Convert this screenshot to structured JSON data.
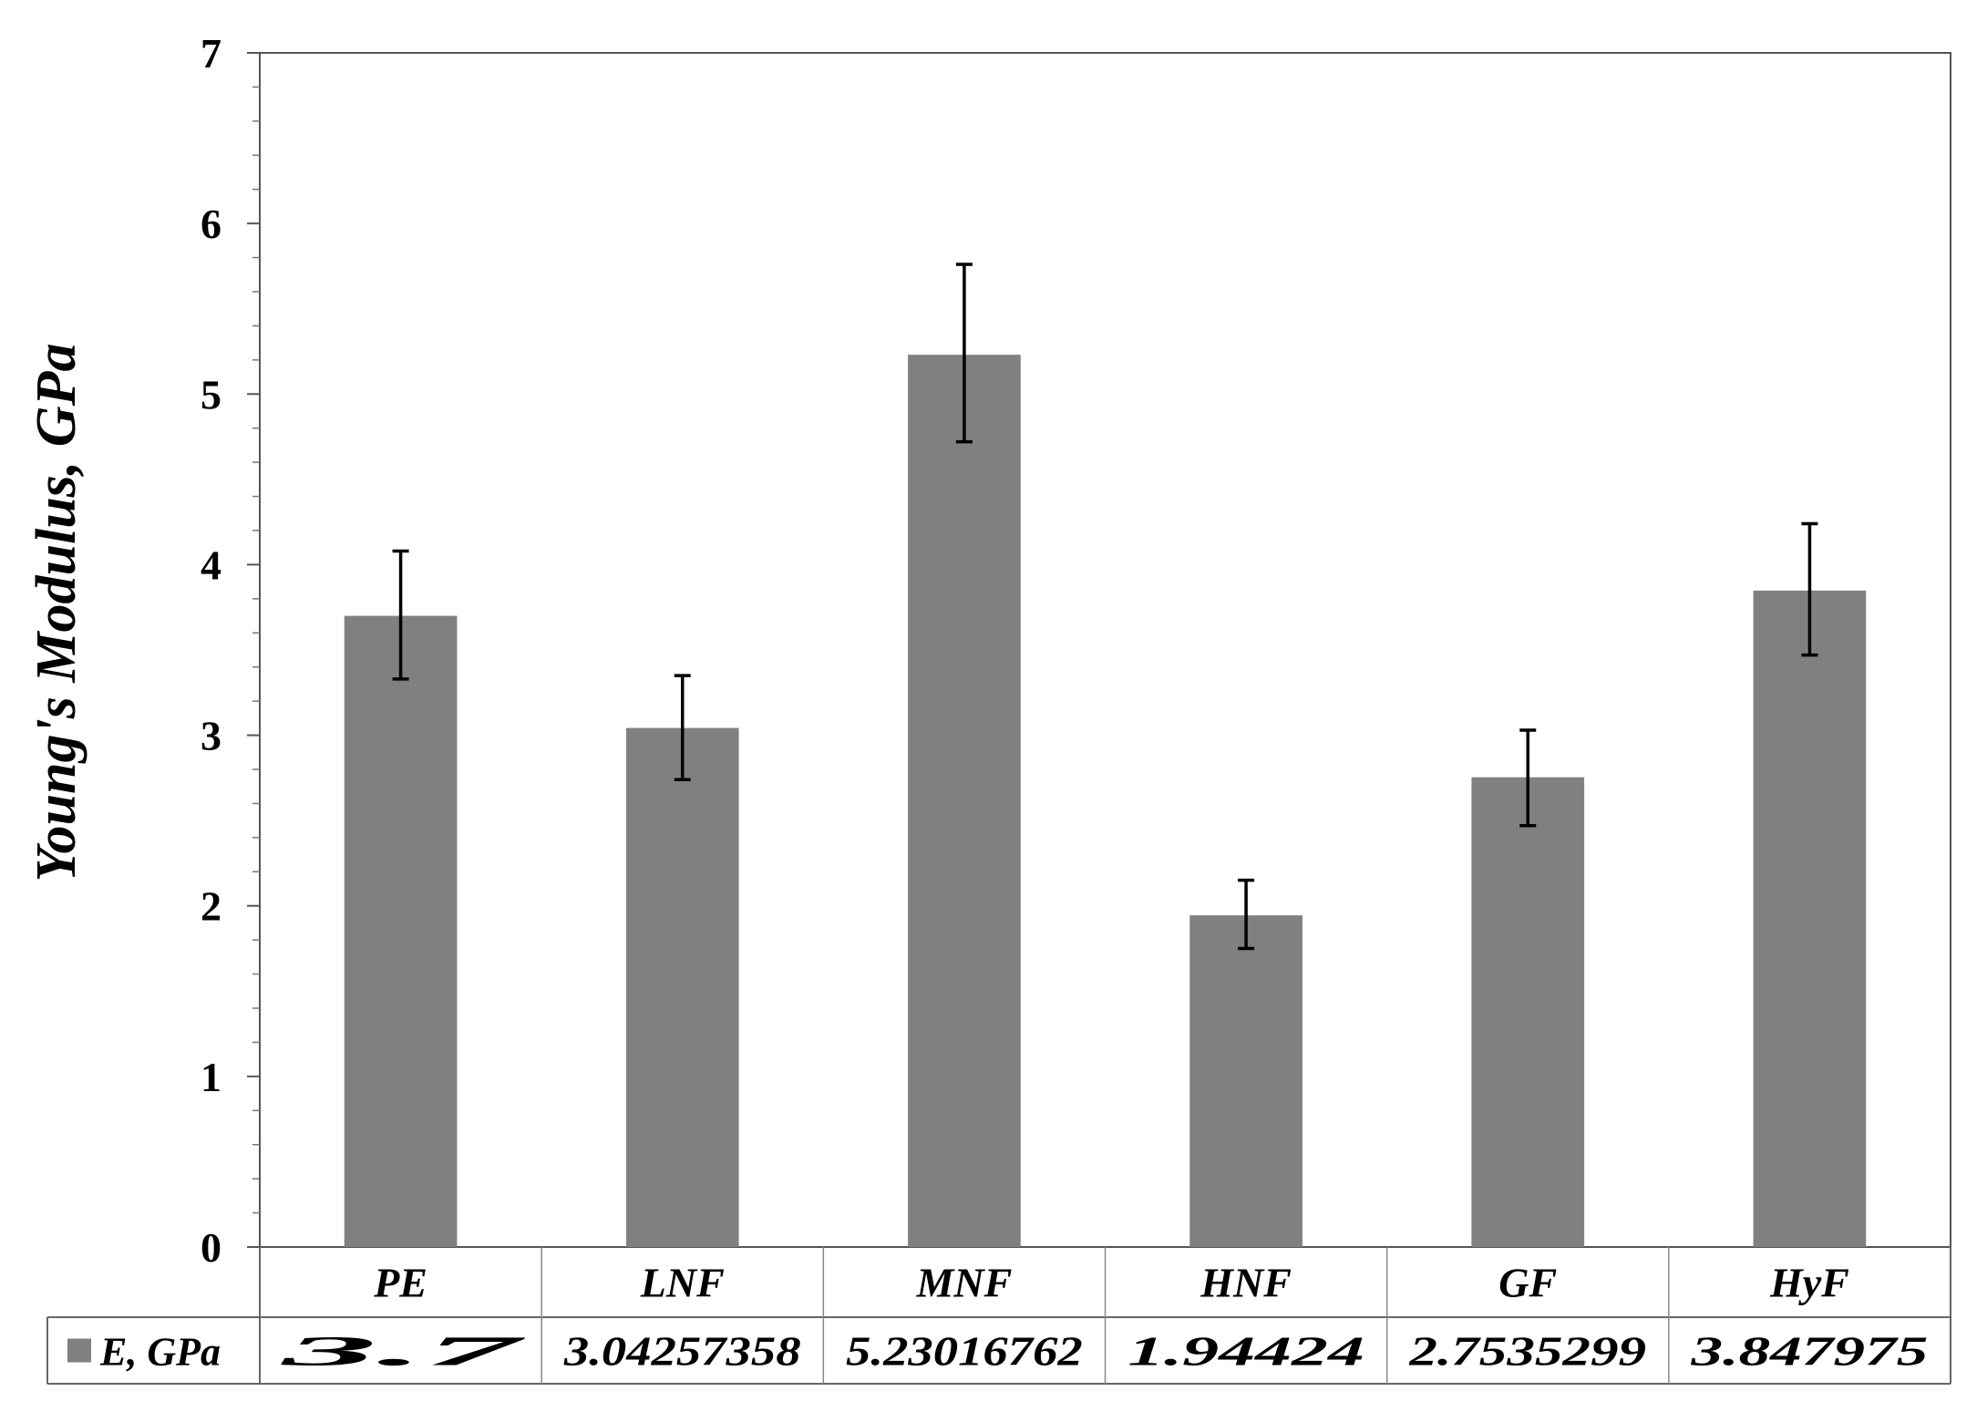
{
  "chart_data": {
    "type": "bar",
    "ylabel": "Young's Modulus, GPa",
    "xlabel": "",
    "title": "",
    "ylim": [
      0,
      7
    ],
    "y_ticks": [
      "0",
      "1",
      "2",
      "3",
      "4",
      "5",
      "6",
      "7"
    ],
    "y_minor_per_major": 4,
    "grid": false,
    "categories": [
      "PE",
      "LNF",
      "MNF",
      "HNF",
      "GF",
      "HyF"
    ],
    "series": [
      {
        "name": "E, GPa",
        "color": "#808080",
        "values": [
          3.7,
          3.04257358,
          5.23016762,
          1.94424,
          2.7535299,
          3.847975
        ],
        "error_upper": [
          4.08,
          3.35,
          5.76,
          2.15,
          3.03,
          4.24
        ],
        "error_lower": [
          3.33,
          2.74,
          4.72,
          1.75,
          2.47,
          3.47
        ]
      }
    ],
    "data_table": {
      "legend_label": "E, GPa",
      "row_values": [
        "3.7",
        "3.04257358",
        "5.23016762",
        "1.94424",
        "2.7535299",
        "3.847975"
      ]
    }
  }
}
